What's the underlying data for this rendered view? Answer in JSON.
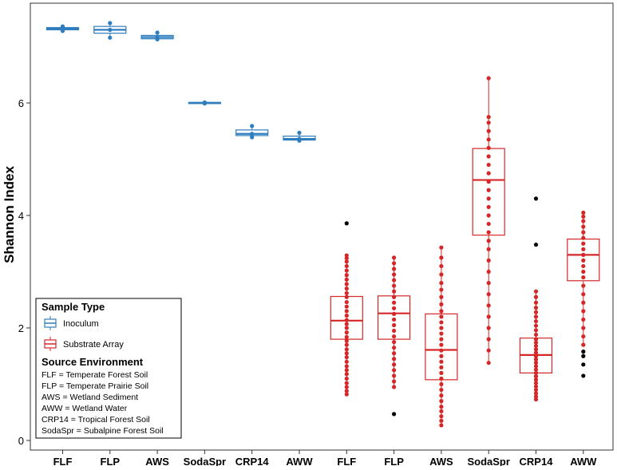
{
  "chart_data": {
    "type": "box",
    "ylabel": "Shannon Index",
    "ylim": [
      0,
      7.6
    ],
    "yticks": [
      0,
      2,
      4,
      6
    ],
    "categories": [
      "FLF",
      "FLP",
      "AWS",
      "SodaSpr",
      "CRP14",
      "AWW",
      "FLF",
      "FLP",
      "AWS",
      "SodaSpr",
      "CRP14",
      "AWW"
    ],
    "colors": {
      "Inoculum": "#2E7EBF",
      "Substrate Array": "#D62728",
      "outlier": "#000000"
    },
    "series": [
      {
        "name": "Inoculum",
        "boxes": [
          {
            "category": "FLF",
            "q1": 7.3,
            "median": 7.32,
            "q3": 7.34,
            "whisker_low": 7.28,
            "whisker_high": 7.36,
            "points": [
              7.28,
              7.32,
              7.36
            ]
          },
          {
            "category": "FLP",
            "q1": 7.24,
            "median": 7.3,
            "q3": 7.36,
            "whisker_low": 7.16,
            "whisker_high": 7.42,
            "points": [
              7.16,
              7.3,
              7.42
            ]
          },
          {
            "category": "AWS",
            "q1": 7.14,
            "median": 7.17,
            "q3": 7.2,
            "whisker_low": 7.13,
            "whisker_high": 7.25,
            "points": [
              7.13,
              7.17,
              7.25
            ]
          },
          {
            "category": "SodaSpr",
            "q1": 5.99,
            "median": 6.0,
            "q3": 6.01,
            "whisker_low": 5.98,
            "whisker_high": 6.02,
            "points": [
              5.99,
              6.0,
              6.01
            ]
          },
          {
            "category": "CRP14",
            "q1": 5.42,
            "median": 5.45,
            "q3": 5.52,
            "whisker_low": 5.39,
            "whisker_high": 5.59,
            "points": [
              5.39,
              5.45,
              5.59
            ]
          },
          {
            "category": "AWW",
            "q1": 5.34,
            "median": 5.36,
            "q3": 5.41,
            "whisker_low": 5.33,
            "whisker_high": 5.47,
            "points": [
              5.33,
              5.36,
              5.47
            ]
          }
        ]
      },
      {
        "name": "Substrate Array",
        "boxes": [
          {
            "category": "FLF",
            "q1": 1.8,
            "median": 2.13,
            "q3": 2.56,
            "whisker_low": 0.82,
            "whisker_high": 3.29,
            "outliers": [
              3.86
            ],
            "points": [
              0.82,
              0.88,
              0.95,
              1.02,
              1.1,
              1.18,
              1.25,
              1.32,
              1.4,
              1.48,
              1.55,
              1.62,
              1.7,
              1.77,
              1.84,
              1.92,
              2.0,
              2.07,
              2.14,
              2.22,
              2.3,
              2.38,
              2.46,
              2.55,
              2.62,
              2.7,
              2.78,
              2.86,
              2.94,
              3.02,
              3.1,
              3.18,
              3.24,
              3.29
            ]
          },
          {
            "category": "FLP",
            "q1": 1.8,
            "median": 2.26,
            "q3": 2.57,
            "whisker_low": 0.95,
            "whisker_high": 3.25,
            "outliers": [
              0.47
            ],
            "points": [
              0.95,
              1.05,
              1.15,
              1.25,
              1.35,
              1.45,
              1.55,
              1.65,
              1.75,
              1.85,
              1.95,
              2.05,
              2.15,
              2.25,
              2.35,
              2.45,
              2.55,
              2.65,
              2.75,
              2.85,
              2.95,
              3.05,
              3.15,
              3.25
            ]
          },
          {
            "category": "AWS",
            "q1": 1.08,
            "median": 1.61,
            "q3": 2.25,
            "whisker_low": 0.27,
            "whisker_high": 3.43,
            "points": [
              0.27,
              0.35,
              0.43,
              0.52,
              0.6,
              0.7,
              0.8,
              0.9,
              1.0,
              1.1,
              1.2,
              1.3,
              1.4,
              1.5,
              1.6,
              1.7,
              1.8,
              1.9,
              2.0,
              2.1,
              2.2,
              2.3,
              2.42,
              2.55,
              2.68,
              2.8,
              2.95,
              3.1,
              3.25,
              3.43
            ]
          },
          {
            "category": "SodaSpr",
            "q1": 3.65,
            "median": 4.63,
            "q3": 5.19,
            "whisker_low": 1.38,
            "whisker_high": 6.44,
            "points": [
              1.38,
              1.6,
              1.8,
              2.0,
              2.2,
              2.4,
              2.6,
              2.8,
              3.0,
              3.2,
              3.4,
              3.55,
              3.7,
              3.85,
              4.0,
              4.15,
              4.3,
              4.45,
              4.6,
              4.75,
              4.9,
              5.05,
              5.2,
              5.35,
              5.5,
              5.65,
              5.75,
              6.44
            ]
          },
          {
            "category": "CRP14",
            "q1": 1.2,
            "median": 1.52,
            "q3": 1.82,
            "whisker_low": 0.73,
            "whisker_high": 2.65,
            "outliers": [
              4.3,
              3.48
            ],
            "points": [
              0.73,
              0.78,
              0.84,
              0.9,
              0.96,
              1.02,
              1.08,
              1.14,
              1.2,
              1.26,
              1.32,
              1.38,
              1.44,
              1.5,
              1.56,
              1.62,
              1.68,
              1.74,
              1.8,
              1.88,
              1.96,
              2.04,
              2.12,
              2.2,
              2.28,
              2.36,
              2.45,
              2.55,
              2.65
            ]
          },
          {
            "category": "AWW",
            "q1": 2.84,
            "median": 3.3,
            "q3": 3.58,
            "whisker_low": 1.7,
            "whisker_high": 4.05,
            "outliers": [
              1.58,
              1.5,
              1.35,
              1.15
            ],
            "points": [
              1.7,
              1.85,
              2.0,
              2.15,
              2.3,
              2.45,
              2.6,
              2.75,
              2.9,
              3.0,
              3.1,
              3.2,
              3.3,
              3.4,
              3.5,
              3.6,
              3.7,
              3.8,
              3.9,
              3.98,
              4.05
            ]
          }
        ]
      }
    ],
    "legend": {
      "title": "Sample Type",
      "placement": "bottom-left",
      "entries": [
        "Inoculum",
        "Substrate Array"
      ],
      "notes_title": "Source Environment",
      "notes": [
        "FLF = Temperate Forest Soil",
        "FLP = Temperate Prairie Soil",
        "AWS = Wetland Sediment",
        "AWW = Wetland Water",
        "CRP14 = Tropical Forest Soil",
        "SodaSpr = Subalpine Forest Soil"
      ]
    }
  }
}
